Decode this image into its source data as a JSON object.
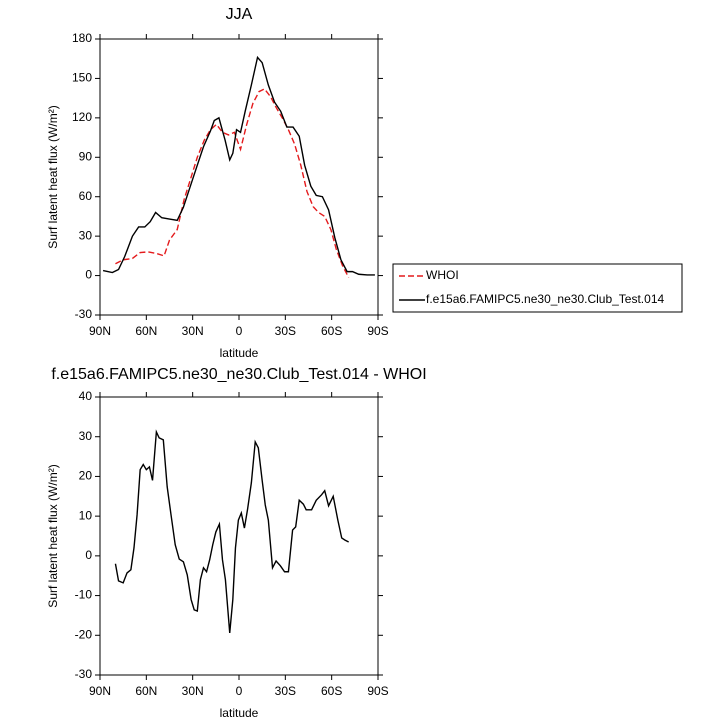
{
  "chart_data": [
    {
      "type": "line",
      "title": "JJA",
      "x_label": "latitude",
      "y_label": "Surf latent heat flux (W/m²)",
      "xlim": [
        90,
        -90
      ],
      "ylim": [
        -30,
        180
      ],
      "xticks": [
        {
          "value": 90,
          "label": "90N"
        },
        {
          "value": 60,
          "label": "60N"
        },
        {
          "value": 30,
          "label": "30N"
        },
        0,
        {
          "value": -30,
          "label": "30S"
        },
        {
          "value": -60,
          "label": "60S"
        },
        {
          "value": -90,
          "label": "90S"
        }
      ],
      "yticks": [
        -30,
        0,
        30,
        60,
        90,
        120,
        150,
        180
      ],
      "legend_position": "right",
      "series": [
        {
          "name": "WHOI",
          "color": "#e41a1c",
          "dashed": true,
          "x": [
            80,
            75,
            69,
            64,
            59,
            54,
            48.5,
            45,
            40,
            35.5,
            31.5,
            27,
            22.5,
            18.5,
            14.6,
            10.7,
            6.8,
            3,
            -1,
            -5,
            -9,
            -13,
            -16.5,
            -20.5,
            -24,
            -28,
            -32,
            -36,
            -40,
            -44,
            -48,
            -51.5,
            -55.5,
            -59.5,
            -63,
            -67,
            -71
          ],
          "values": [
            9,
            12,
            13,
            17.5,
            18,
            17,
            15,
            27,
            35,
            58,
            73,
            90,
            103,
            111,
            115,
            109,
            107,
            109,
            96,
            115,
            131,
            140,
            142,
            136,
            128,
            120,
            111,
            100,
            84,
            64,
            52.5,
            48,
            45,
            35,
            20,
            7.6,
            -1.5
          ]
        },
        {
          "name": "f.e15a6.FAMIPC5.ne30_ne30.Club_Test.014",
          "color": "#000000",
          "dashed": false,
          "x": [
            88,
            82,
            78,
            74,
            69,
            65,
            61,
            57.5,
            54,
            50,
            45,
            40,
            36,
            31.5,
            27,
            23,
            18.5,
            16,
            13,
            9,
            6,
            4,
            1.6,
            -1,
            -4,
            -8,
            -12,
            -15,
            -19,
            -23,
            -27,
            -31,
            -35,
            -39,
            -42.5,
            -46.5,
            -50,
            -54,
            -58,
            -62,
            -66,
            -70,
            -73.5,
            -77.5,
            -83,
            -88
          ],
          "values": [
            3.8,
            2.3,
            4.6,
            14.5,
            30,
            37,
            37,
            41,
            48,
            44,
            43,
            42,
            52,
            68,
            84,
            98,
            110,
            118,
            120,
            103,
            88,
            93,
            111,
            109,
            125,
            145,
            166,
            162,
            145,
            132,
            125,
            113,
            113,
            106,
            84,
            68,
            61,
            60,
            50,
            29,
            12,
            3,
            3,
            1,
            0.5,
            0.5
          ]
        }
      ]
    },
    {
      "type": "line",
      "title": "f.e15a6.FAMIPC5.ne30_ne30.Club_Test.014 - WHOI",
      "x_label": "latitude",
      "y_label": "Surf latent heat flux (W/m²)",
      "xlim": [
        90,
        -90
      ],
      "ylim": [
        -30,
        40
      ],
      "xticks": [
        {
          "value": 90,
          "label": "90N"
        },
        {
          "value": 60,
          "label": "60N"
        },
        {
          "value": 30,
          "label": "30N"
        },
        0,
        {
          "value": -30,
          "label": "30S"
        },
        {
          "value": -60,
          "label": "60S"
        },
        {
          "value": -90,
          "label": "90S"
        }
      ],
      "yticks": [
        -30,
        -20,
        -10,
        0,
        10,
        20,
        30,
        40
      ],
      "series": [
        {
          "color": "#000000",
          "dashed": false,
          "x": [
            80,
            78,
            75,
            72.5,
            70,
            68,
            66,
            64,
            62,
            60,
            58,
            56,
            53.5,
            51.7,
            49,
            46.5,
            44,
            41.3,
            38.7,
            36,
            33.5,
            31,
            29,
            27,
            25,
            23,
            21,
            19,
            17,
            15,
            12.7,
            10.7,
            8.8,
            6,
            4,
            2.3,
            0.4,
            -1.5,
            -3.5,
            -5.5,
            -8,
            -10.5,
            -12.5,
            -15,
            -17,
            -19,
            -21.7,
            -24,
            -26.8,
            -29.5,
            -32,
            -34.7,
            -36.7,
            -39,
            -41.7,
            -43.5,
            -47,
            -50,
            -53.5,
            -55.5,
            -58,
            -61,
            -64,
            -66.5,
            -68.5,
            -71
          ],
          "values": [
            -2,
            -6.3,
            -6.8,
            -4.3,
            -3.5,
            2,
            10.3,
            21.7,
            23,
            21.7,
            22.4,
            19,
            31.2,
            29.7,
            29.2,
            17.4,
            10.3,
            2.8,
            -0.8,
            -1.5,
            -4.8,
            -11,
            -13.6,
            -13.9,
            -6,
            -3,
            -4,
            -1,
            2.8,
            6,
            8,
            -1,
            -6,
            -19.4,
            -11,
            2,
            9,
            10.8,
            7,
            11.6,
            18.4,
            28.7,
            27.2,
            19,
            12.8,
            9,
            -3,
            -1.3,
            -2.5,
            -4,
            -4,
            6.5,
            7.3,
            14,
            13,
            11.6,
            11.6,
            14,
            15.4,
            16.4,
            12.6,
            15,
            9,
            4.5,
            4,
            3.5
          ]
        }
      ]
    }
  ]
}
